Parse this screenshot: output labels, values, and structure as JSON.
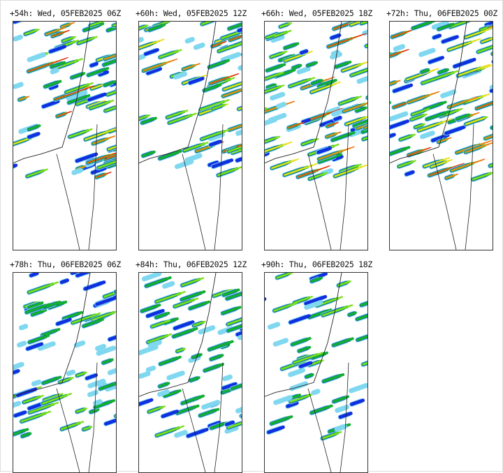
{
  "panels": [
    {
      "label": "+54h: Wed, 05FEB2025 06Z",
      "coverage": 0.55
    },
    {
      "label": "+60h: Wed, 05FEB2025 12Z",
      "coverage": 0.45
    },
    {
      "label": "+66h: Wed, 05FEB2025 18Z",
      "coverage": 0.6
    },
    {
      "label": "+72h: Thu, 06FEB2025 00Z",
      "coverage": 0.55
    },
    {
      "label": "+78h: Thu, 06FEB2025 06Z",
      "coverage": 0.5
    },
    {
      "label": "+84h: Thu, 06FEB2025 12Z",
      "coverage": 0.5
    },
    {
      "label": "+90h: Thu, 06FEB2025 18Z",
      "coverage": 0.35
    }
  ],
  "colors": {
    "light": "#7fd8f0",
    "blue": "#1030e0",
    "green": "#10b030",
    "lime": "#80e020",
    "yellow": "#f0e020",
    "orange": "#f07020",
    "red": "#e02020"
  }
}
